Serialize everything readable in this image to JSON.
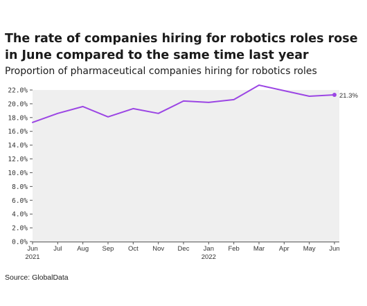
{
  "title": "The rate of companies hiring for robotics roles rose in June compared to the same time last year",
  "subtitle": "Proportion of pharmaceutical companies hiring for robotics roles",
  "source": "Source: GlobalData",
  "colors": {
    "line": "#9b45e4",
    "plot_bg": "#efefef",
    "axis": "#555555"
  },
  "chart_data": {
    "type": "line",
    "title": "The rate of companies hiring for robotics roles rose in June compared to the same time last year",
    "subtitle": "Proportion of pharmaceutical companies hiring for robotics roles",
    "xlabel": "",
    "ylabel": "",
    "categories": [
      "Jun 2021",
      "Jul",
      "Aug",
      "Sep",
      "Oct",
      "Nov",
      "Dec",
      "Jan 2022",
      "Feb",
      "Mar",
      "Apr",
      "May",
      "Jun"
    ],
    "x_tick_labels": [
      [
        "Jun",
        "2021"
      ],
      [
        "Jul"
      ],
      [
        "Aug"
      ],
      [
        "Sep"
      ],
      [
        "Oct"
      ],
      [
        "Nov"
      ],
      [
        "Dec"
      ],
      [
        "Jan",
        "2022"
      ],
      [
        "Feb"
      ],
      [
        "Mar"
      ],
      [
        "Apr"
      ],
      [
        "May"
      ],
      [
        "Jun"
      ]
    ],
    "values": [
      17.3,
      18.6,
      19.6,
      18.1,
      19.3,
      18.6,
      20.4,
      20.2,
      20.6,
      22.7,
      21.9,
      21.1,
      21.3
    ],
    "ylim": [
      0,
      22
    ],
    "yticks": [
      0,
      2,
      4,
      6,
      8,
      10,
      12,
      14,
      16,
      18,
      20,
      22
    ],
    "ytick_labels": [
      "0.0%",
      "2.0%",
      "4.0%",
      "6.0%",
      "8.0%",
      "10.0%",
      "12.0%",
      "14.0%",
      "16.0%",
      "18.0%",
      "20.0%",
      "22.0%"
    ],
    "end_label": "21.3%",
    "grid": false,
    "legend": "none"
  }
}
